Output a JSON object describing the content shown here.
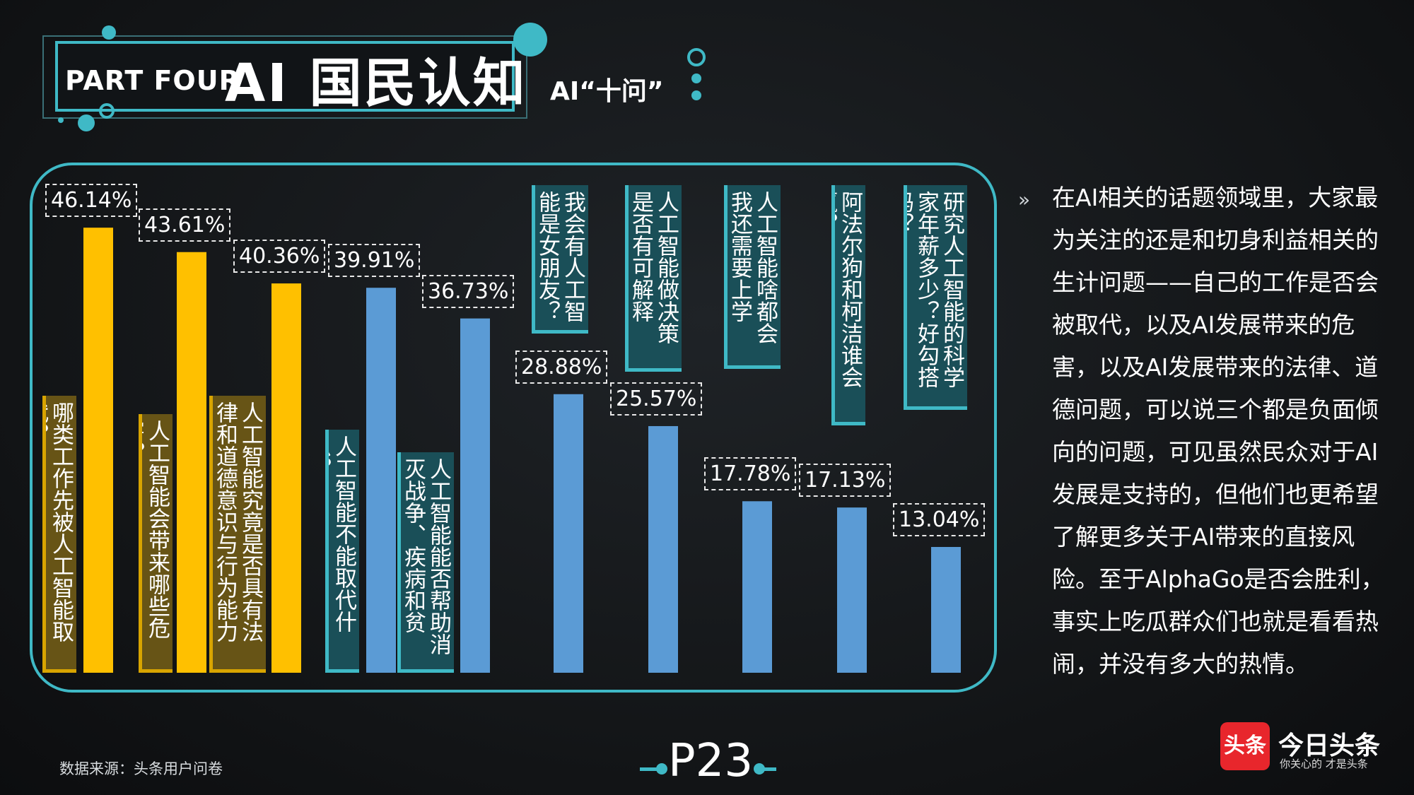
{
  "header": {
    "part_label": "PART FOUR",
    "title": "AI 国民认知",
    "subtitle": "AI“十问”"
  },
  "colors": {
    "accent": "#3fb9c6",
    "gold_bar": "#ffc000",
    "blue_bar": "#5b9bd5"
  },
  "chart_data": {
    "type": "bar",
    "title": "AI“十问”",
    "xlabel": "",
    "ylabel": "",
    "ylim": [
      0,
      50
    ],
    "categories": [
      "哪类工作先被人工智能取代？",
      "人工智能会带来哪些危害？",
      "人工智能究竟是否具有法律和道德意识与行为能力主体？",
      "人工智能不能取代什么？",
      "人工智能能否帮助消灭战争、疾病和贫困？",
      "我会有人工智能是女朋友？",
      "人工智能做决策是否有可解释性？",
      "人工智能啥都会我还需要上学吗？",
      "阿法尔狗和柯洁谁会赢？",
      "研究人工智能的科学家年薪多少？好勾搭吗？"
    ],
    "values": [
      46.14,
      43.61,
      40.36,
      39.91,
      36.73,
      28.88,
      25.57,
      17.78,
      17.13,
      13.04
    ],
    "value_labels": [
      "46.14%",
      "43.61%",
      "40.36%",
      "39.91%",
      "36.73%",
      "28.88%",
      "25.57%",
      "17.78%",
      "17.13%",
      "13.04%"
    ],
    "bar_colors": [
      "#ffc000",
      "#ffc000",
      "#ffc000",
      "#5b9bd5",
      "#5b9bd5",
      "#5b9bd5",
      "#5b9bd5",
      "#5b9bd5",
      "#5b9bd5",
      "#5b9bd5"
    ]
  },
  "description": {
    "bullet": "»",
    "text": "在AI相关的话题领域里，大家最为关注的还是和切身利益相关的生计问题——自己的工作是否会被取代，以及AI发展带来的危害，以及AI发展带来的法律、道德问题，可以说三个都是负面倾向的问题，可见虽然民众对于AI发展是支持的，但他们也更希望了解更多关于AI带来的直接风险。至于AlphaGo是否会胜利，事实上吃瓜群众们也就是看看热闹，并没有多大的热情。"
  },
  "footer": {
    "source": "数据来源：头条用户问卷",
    "page": "P23"
  },
  "logo": {
    "icon_text": "头条",
    "name": "今日头条",
    "slogan": "你关心的 才是头条"
  }
}
